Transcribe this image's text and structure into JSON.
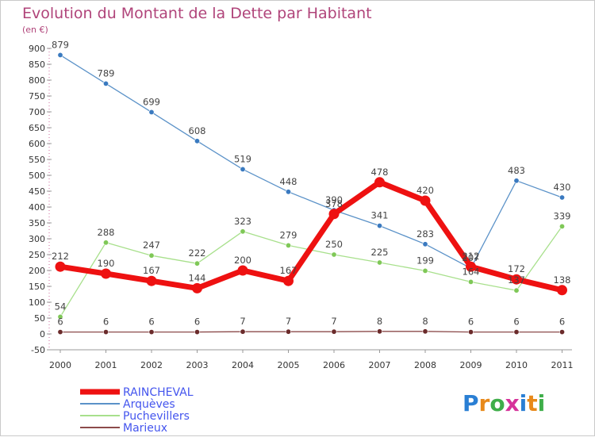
{
  "chart_data": {
    "type": "line",
    "title": "Evolution du Montant de la Dette par Habitant",
    "unit_label": "(en €)",
    "xlabel": "",
    "ylabel": "",
    "categories": [
      "2000",
      "2001",
      "2002",
      "2003",
      "2004",
      "2005",
      "2006",
      "2007",
      "2008",
      "2009",
      "2010",
      "2011"
    ],
    "ylim": [
      -50,
      900
    ],
    "yticks": [
      -50,
      0,
      50,
      100,
      150,
      200,
      250,
      300,
      350,
      400,
      450,
      500,
      550,
      600,
      650,
      700,
      750,
      800,
      850,
      900
    ],
    "grid": false,
    "legend_position": "bottom-left",
    "series": [
      {
        "name": "Arquèves",
        "color": "#5b92c8",
        "point_color": "#3a7ac0",
        "values": [
          879,
          789,
          699,
          608,
          519,
          448,
          390,
          341,
          283,
          207,
          483,
          430
        ]
      },
      {
        "name": "Puchevillers",
        "color": "#a8e08c",
        "point_color": "#7fc857",
        "values": [
          54,
          288,
          247,
          222,
          323,
          279,
          250,
          225,
          199,
          164,
          137,
          339
        ]
      },
      {
        "name": "Marieux",
        "color": "#8c4b4b",
        "point_color": "#6b2b2b",
        "values": [
          6,
          6,
          6,
          6,
          7,
          7,
          7,
          8,
          8,
          6,
          6,
          6
        ]
      },
      {
        "name": "RAINCHEVAL",
        "color": "#ee1111",
        "point_color": "#ee1111",
        "values": [
          212,
          190,
          167,
          144,
          200,
          167,
          378,
          478,
          420,
          212,
          172,
          138
        ]
      }
    ],
    "legend_order": [
      "RAINCHEVAL",
      "Arquèves",
      "Puchevillers",
      "Marieux"
    ]
  },
  "logo": {
    "text": "Proxiti"
  }
}
